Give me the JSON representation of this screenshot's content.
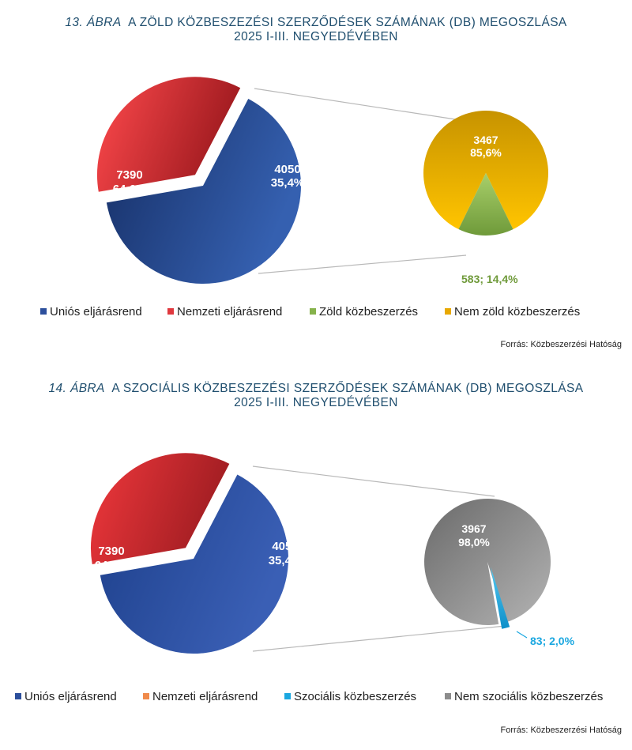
{
  "chart_data": [
    {
      "type": "pie",
      "title_num": "13. ÁBRA",
      "title": "A ZÖLD KÖZBESZEZÉSI SZERZŐDÉSEK SZÁMÁNAK (DB) MEGOSZLÁSA",
      "title_line2": "2025 I-III. NEGYEDÉVÉBEN",
      "main_pie": [
        {
          "name": "Uniós eljárásrend",
          "value": 7390,
          "percent": "64,6%",
          "color": "#2c4f9c"
        },
        {
          "name": "Nemzeti eljárásrend",
          "value": 4050,
          "percent": "35,4%",
          "color": "#e0383e"
        }
      ],
      "sub_pie": [
        {
          "name": "Nem zöld közbeszerzés",
          "value": 3467,
          "percent": "85,6%",
          "color": "#e8a800"
        },
        {
          "name": "Zöld közbeszerzés",
          "value": 583,
          "percent": "14,4%",
          "color": "#86b24b",
          "label": "583; 14,4%"
        }
      ],
      "legend": [
        {
          "label": "Uniós eljárásrend",
          "color": "#2c4f9c"
        },
        {
          "label": "Nemzeti eljárásrend",
          "color": "#e0383e"
        },
        {
          "label": "Zöld közbeszerzés",
          "color": "#86b24b"
        },
        {
          "label": "Nem zöld közbeszerzés",
          "color": "#e8a800"
        }
      ],
      "source": "Forrás: Közbeszerzési Hatóság"
    },
    {
      "type": "pie",
      "title_num": "14. ÁBRA",
      "title": "A SZOCIÁLIS KÖZBESZEZÉSI SZERZŐDÉSEK SZÁMÁNAK (DB) MEGOSZLÁSA",
      "title_line2": "2025 I-III. NEGYEDÉVÉBEN",
      "main_pie": [
        {
          "name": "Uniós eljárásrend",
          "value": 7390,
          "percent": "64,6%",
          "color": "#2c4f9c"
        },
        {
          "name": "Nemzeti eljárásrend",
          "value": 4050,
          "percent": "35,4%",
          "color": "#e0383e"
        }
      ],
      "sub_pie": [
        {
          "name": "Nem szociális közbeszerzés",
          "value": 3967,
          "percent": "98,0%",
          "color": "#8c8c8c"
        },
        {
          "name": "Szociális közbeszerzés",
          "value": 83,
          "percent": "2,0%",
          "color": "#1aa7e0",
          "label": "83; 2,0%"
        }
      ],
      "legend": [
        {
          "label": "Uniós eljárásrend",
          "color": "#2c4f9c"
        },
        {
          "label": "Nemzeti eljárásrend",
          "color": "#f08a4b"
        },
        {
          "label": "Szociális közbeszerzés",
          "color": "#1aa7e0"
        },
        {
          "label": "Nem szociális közbeszerzés",
          "color": "#8c8c8c"
        }
      ],
      "source": "Forrás: Közbeszerzési Hatóság"
    }
  ]
}
